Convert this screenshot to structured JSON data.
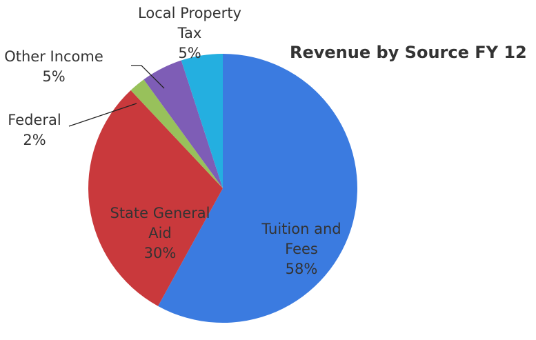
{
  "chart_data": {
    "type": "pie",
    "title": "Revenue by Source FY 12",
    "categories": [
      "Tuition and Fees",
      "State General Aid",
      "Federal",
      "Other Income",
      "Local Property Tax"
    ],
    "values": [
      58,
      30,
      2,
      5,
      5
    ],
    "value_labels": [
      "58%",
      "30%",
      "2%",
      "5%",
      "5%"
    ],
    "colors": [
      "#3b7be0",
      "#c9393c",
      "#98c15b",
      "#7e5db6",
      "#24afe0"
    ]
  }
}
